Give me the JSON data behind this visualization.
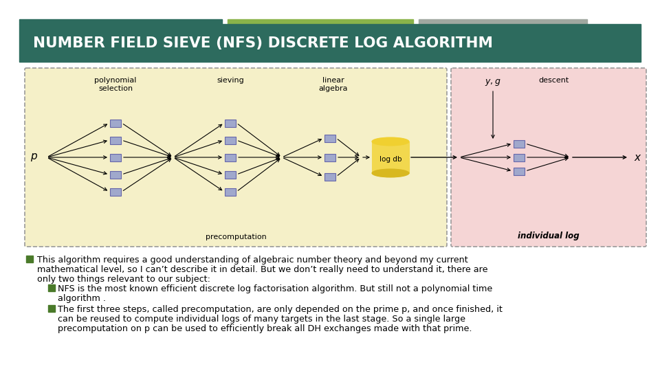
{
  "title": "NUMBER FIELD SIEVE (NFS) DISCRETE LOG ALGORITHM",
  "title_bg": "#2d6b5e",
  "header_bar1_color": "#2d6b5e",
  "header_bar2_color": "#8ab34a",
  "header_bar3_color": "#a0a8a0",
  "slide_bg": "#ffffff",
  "precomp_bg": "#f5f0c8",
  "descent_bg": "#f5d5d5",
  "box_color": "#a0a8cc",
  "box_border": "#6666aa",
  "dashed_border": "#999999",
  "text_color": "#000000",
  "bullet_color": "#4a7a2a",
  "bullet_text_color": "#000000",
  "main_bullet_line1": "This algorithm requires a good understanding of algebraic number theory and beyond my current",
  "main_bullet_line2": "mathematical level, so I can’t describe it in detail. But we don’t really need to understand it, there are",
  "main_bullet_line3": "only two things relevant to our subject:",
  "sub_bullet1_line1": "NFS is the most known efficient discrete log factorisation algorithm. But still not a polynomial time",
  "sub_bullet1_line2": "algorithm .",
  "sub_bullet2_line1": "The first three steps, called precomputation, are only depended on the prime p, and once finished, it",
  "sub_bullet2_line2": "can be reused to compute individual logs of many targets in the last stage. So a single large",
  "sub_bullet2_line3": "precomputation on p can be used to efficiently break all DH exchanges made with that prime."
}
